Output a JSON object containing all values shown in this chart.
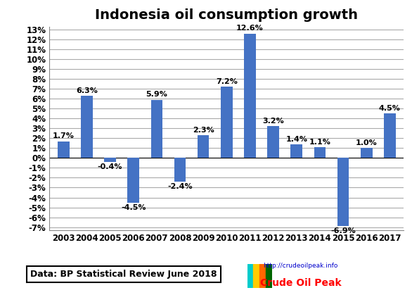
{
  "title": "Indonesia oil consumption growth",
  "years": [
    2003,
    2004,
    2005,
    2006,
    2007,
    2008,
    2009,
    2010,
    2011,
    2012,
    2013,
    2014,
    2015,
    2016,
    2017
  ],
  "values": [
    1.7,
    6.3,
    -0.4,
    -4.5,
    5.9,
    -2.4,
    2.3,
    7.2,
    12.6,
    3.2,
    1.4,
    1.1,
    -6.9,
    1.0,
    4.5
  ],
  "bar_color": "#4472C4",
  "ylim": [
    -7,
    13
  ],
  "yticks": [
    -7,
    -6,
    -5,
    -4,
    -3,
    -2,
    -1,
    0,
    1,
    2,
    3,
    4,
    5,
    6,
    7,
    8,
    9,
    10,
    11,
    12,
    13
  ],
  "ytick_labels": [
    "-7%",
    "-6%",
    "-5%",
    "-4%",
    "-3%",
    "-2%",
    "-1%",
    "0%",
    "1%",
    "2%",
    "3%",
    "4%",
    "5%",
    "6%",
    "7%",
    "8%",
    "9%",
    "10%",
    "11%",
    "12%",
    "13%"
  ],
  "title_fontsize": 14,
  "label_fontsize": 8,
  "tick_fontsize": 8.5,
  "footer_text": "Data: BP Statistical Review June 2018",
  "url_text": "http://crudeoilpeak.info",
  "logo_text": "Crude Oil Peak",
  "background_color": "#FFFFFF",
  "grid_color": "#AAAAAA",
  "bar_width": 0.5
}
